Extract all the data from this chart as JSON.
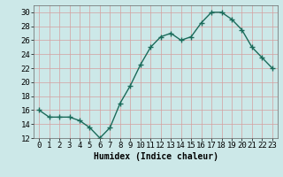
{
  "x": [
    0,
    1,
    2,
    3,
    4,
    5,
    6,
    7,
    8,
    9,
    10,
    11,
    12,
    13,
    14,
    15,
    16,
    17,
    18,
    19,
    20,
    21,
    22,
    23
  ],
  "y": [
    16,
    15,
    15,
    15,
    14.5,
    13.5,
    12,
    13.5,
    17,
    19.5,
    22.5,
    25,
    26.5,
    27,
    26,
    26.5,
    28.5,
    30,
    30,
    29,
    27.5,
    25,
    23.5,
    22
  ],
  "line_color": "#1a6b5a",
  "marker": "+",
  "marker_size": 4,
  "marker_linewidth": 1.0,
  "line_width": 1.0,
  "bg_color": "#cce8e8",
  "grid_color": "#b0d4d4",
  "xlabel": "Humidex (Indice chaleur)",
  "ylim": [
    12,
    31
  ],
  "xlim": [
    -0.5,
    23.5
  ],
  "yticks": [
    12,
    14,
    16,
    18,
    20,
    22,
    24,
    26,
    28,
    30
  ],
  "xtick_labels": [
    "0",
    "1",
    "2",
    "3",
    "4",
    "5",
    "6",
    "7",
    "8",
    "9",
    "10",
    "11",
    "12",
    "13",
    "14",
    "15",
    "16",
    "17",
    "18",
    "19",
    "20",
    "21",
    "22",
    "23"
  ],
  "label_fontsize": 7,
  "tick_fontsize": 6.5
}
